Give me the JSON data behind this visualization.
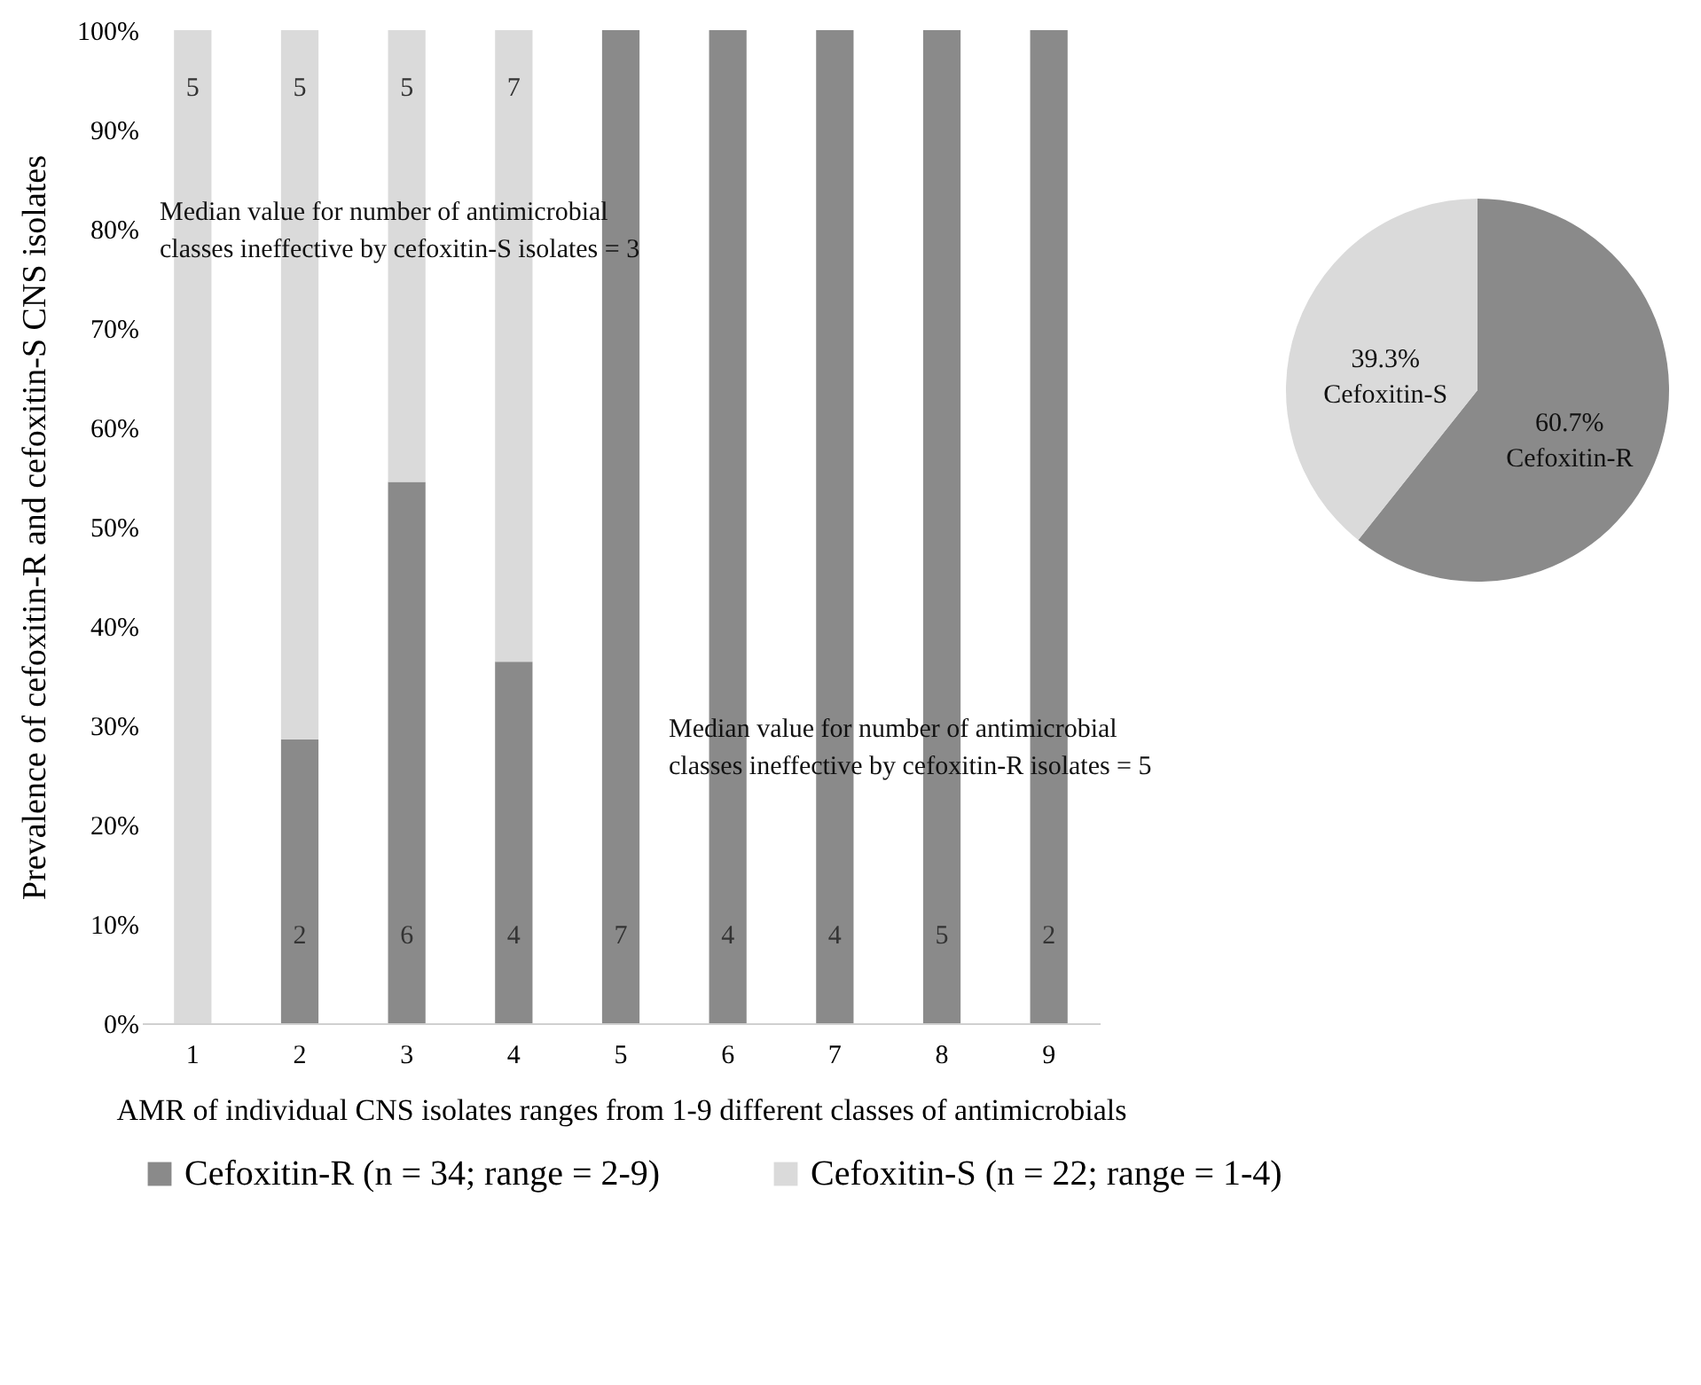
{
  "chart_data": [
    {
      "type": "bar",
      "stacked": true,
      "categories": [
        "1",
        "2",
        "3",
        "4",
        "5",
        "6",
        "7",
        "8",
        "9"
      ],
      "xlabel": "AMR of individual CNS isolates ranges from 1-9 different classes of antimicrobials",
      "ylabel": "Prevalence of cefoxitin-R and cefoxitin-S CNS isolates",
      "ylim": [
        0,
        100
      ],
      "yticks": [
        {
          "value": 0,
          "label": "0%"
        },
        {
          "value": 10,
          "label": "10%"
        },
        {
          "value": 20,
          "label": "20%"
        },
        {
          "value": 30,
          "label": "30%"
        },
        {
          "value": 40,
          "label": "40%"
        },
        {
          "value": 50,
          "label": "50%"
        },
        {
          "value": 60,
          "label": "60%"
        },
        {
          "value": 70,
          "label": "70%"
        },
        {
          "value": 80,
          "label": "80%"
        },
        {
          "value": 90,
          "label": "90%"
        },
        {
          "value": 100,
          "label": "100%"
        }
      ],
      "series": [
        {
          "name": "Cefoxitin-R (n = 34; range = 2-9)",
          "color": "#8a8a8a",
          "values": [
            0,
            28.6,
            54.5,
            36.4,
            100,
            100,
            100,
            100,
            100
          ]
        },
        {
          "name": "Cefoxitin-S (n = 22; range = 1-4)",
          "color": "#dadada",
          "values": [
            100,
            71.4,
            45.5,
            63.6,
            0,
            0,
            0,
            0,
            0
          ]
        }
      ],
      "legend": "bottom",
      "annotations": [
        "Median value for number of antimicrobial classes ineffective by cefoxitin-S isolates = 3",
        "Median value for number of antimicrobial classes ineffective by cefoxitin-R isolates = 5",
        {
          "text": "5",
          "x": "1",
          "y": 100
        },
        {
          "text": "5",
          "x": "2",
          "y": 100
        },
        {
          "text": "5",
          "x": "3",
          "y": 100
        },
        {
          "text": "7",
          "x": "4",
          "y": 100
        },
        {
          "text": "2",
          "x": "2",
          "y": 0
        },
        {
          "text": "6",
          "x": "3",
          "y": 0
        },
        {
          "text": "4",
          "x": "4",
          "y": 0
        },
        {
          "text": "7",
          "x": "5",
          "y": 0
        },
        {
          "text": "4",
          "x": "6",
          "y": 0
        },
        {
          "text": "4",
          "x": "7",
          "y": 0
        },
        {
          "text": "5",
          "x": "8",
          "y": 0
        },
        {
          "text": "2",
          "x": "9",
          "y": 0
        }
      ]
    },
    {
      "type": "pie",
      "categories": [
        "Cefoxitin-R",
        "Cefoxitin-S"
      ],
      "values": [
        60.7,
        39.3
      ],
      "colors": [
        "#8a8a8a",
        "#dadada"
      ],
      "value_labels": [
        "60.7%",
        "39.3%"
      ]
    }
  ]
}
